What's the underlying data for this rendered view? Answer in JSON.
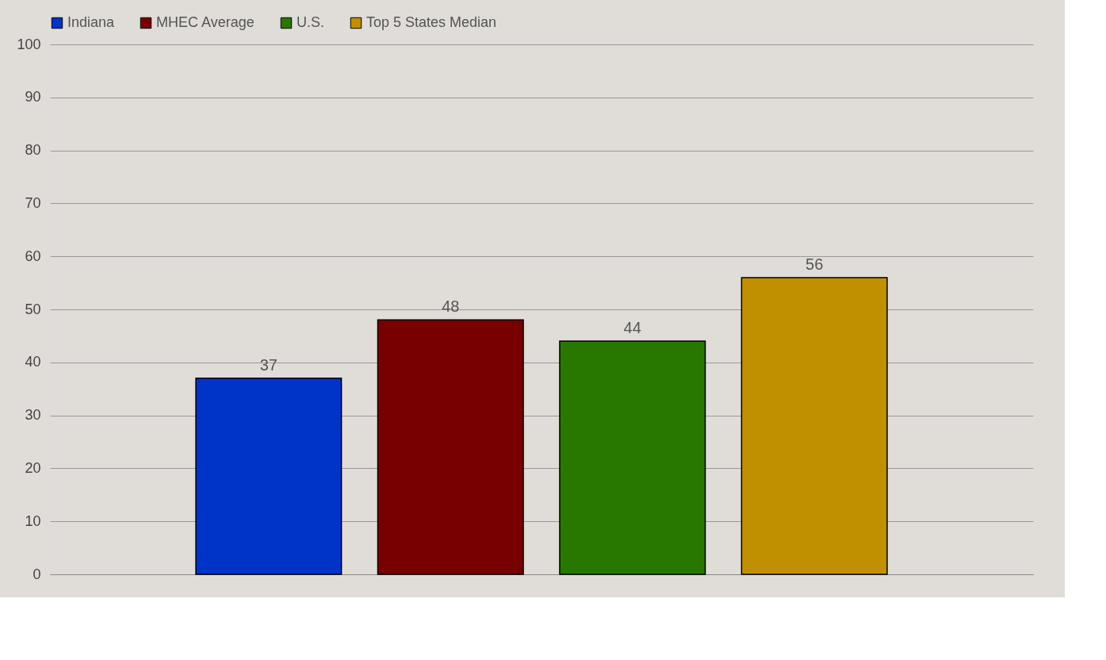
{
  "chart_data": {
    "type": "bar",
    "categories": [
      null
    ],
    "series": [
      {
        "name": "Indiana",
        "color": "#0033c8",
        "values": [
          37
        ]
      },
      {
        "name": "MHEC Average",
        "color": "#780000",
        "values": [
          48
        ]
      },
      {
        "name": "U.S.",
        "color": "#287800",
        "values": [
          44
        ]
      },
      {
        "name": "Top 5 States Median",
        "color": "#c09000",
        "values": [
          56
        ]
      }
    ],
    "ylim": [
      0,
      100
    ],
    "yticks": [
      0,
      10,
      20,
      30,
      40,
      50,
      60,
      70,
      80,
      90,
      100
    ],
    "grid": "y",
    "legend": "top",
    "data_labels": true
  }
}
